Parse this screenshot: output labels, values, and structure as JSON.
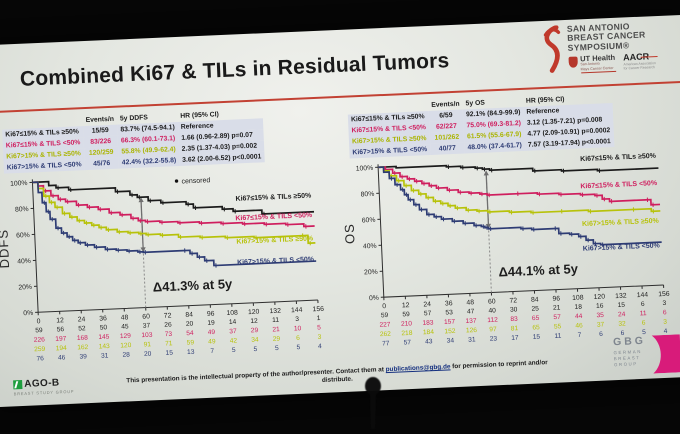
{
  "slide": {
    "title": "Combined Ki67 & TILs in Residual Tumors"
  },
  "logos": {
    "sabcs": {
      "line1": "SAN ANTONIO",
      "line2": "BREAST CANCER",
      "line3": "SYMPOSIUM®"
    },
    "ut_health": {
      "name": "UT Health",
      "sub1": "San Antonio",
      "sub2": "Mays Cancer Center"
    },
    "aacr": {
      "name": "AACR",
      "sub1": "American Association",
      "sub2": "for Cancer Research"
    },
    "ago": {
      "name": "AGO-B",
      "sub": "BREAST STUDY GROUP"
    },
    "gbg": {
      "name": "GBG",
      "sub1": "GERMAN",
      "sub2": "BREAST",
      "sub3": "GROUP"
    }
  },
  "footer": {
    "pre": "This presentation is the intellectual property of the author/presenter. Contact them at ",
    "link": "publications@gbg.de",
    "post": " for permission to reprint and/or distribute."
  },
  "colors": {
    "group1": "#1b1b1b",
    "group2": "#cf1e5e",
    "group3": "#aab400",
    "group4": "#2e3c74",
    "accent_red": "#c24133",
    "gbg_magenta": "#d81b7a",
    "ago_green": "#1e9e3e"
  },
  "tables": [
    {
      "headers": [
        "Events/n",
        "5y DDFS",
        "HR (95% CI)"
      ],
      "rows": [
        {
          "label": "Ki67≤15% & TILs ≥50%",
          "events": "15/59",
          "surv": "83.7% (74.5-94.1)",
          "hr": "Reference",
          "color": "#1b1b1b"
        },
        {
          "label": "Ki67≤15% & TILS <50%",
          "events": "83/226",
          "surv": "66.3% (60.1-73.1)",
          "hr": "1.66 (0.96-2.89) p=0.07",
          "color": "#cf1e5e"
        },
        {
          "label": "Ki67>15% & TILS ≥50%",
          "events": "120/259",
          "surv": "55.8% (49.9-62.4)",
          "hr": "2.35 (1.37-4.03) p=0.002",
          "color": "#aab400"
        },
        {
          "label": "Ki67>15% & TILS <50%",
          "events": "45/76",
          "surv": "42.4% (32.2-55.8)",
          "hr": "3.62 (2.00-6.52) p<0.0001",
          "color": "#2e3c74"
        }
      ]
    },
    {
      "headers": [
        "Events/n",
        "5y OS",
        "HR (95% CI)"
      ],
      "rows": [
        {
          "label": "Ki67≤15% & TILs ≥50%",
          "events": "6/59",
          "surv": "92.1% (84.9-99.9)",
          "hr": "Reference",
          "color": "#1b1b1b"
        },
        {
          "label": "Ki67≤15% & TILS <50%",
          "events": "62/227",
          "surv": "75.0% (69.3-81.2)",
          "hr": "3.12 (1.35-7.21) p=0.008",
          "color": "#cf1e5e"
        },
        {
          "label": "Ki67>15% & TILS ≥50%",
          "events": "101/262",
          "surv": "61.5% (55.6-67.9)",
          "hr": "4.77 (2.09-10.91) p=0.0002",
          "color": "#aab400"
        },
        {
          "label": "Ki67>15% & TILS <50%",
          "events": "40/77",
          "surv": "48.0% (37.4-61.7)",
          "hr": "7.57 (3.19-17.94) p<0.0001",
          "color": "#2e3c74"
        }
      ]
    }
  ],
  "chart_data": [
    {
      "type": "line",
      "subtype": "kaplan-meier",
      "title": "",
      "ylabel": "DDFS",
      "xlabel": "",
      "xlim": [
        0,
        156
      ],
      "ylim": [
        0,
        100
      ],
      "x_ticks": [
        0,
        12,
        24,
        36,
        48,
        60,
        72,
        84,
        96,
        108,
        120,
        132,
        144,
        156
      ],
      "y_tick_labels": [
        "0%",
        "20%",
        "40%",
        "60%",
        "80%",
        "100%"
      ],
      "legend": "censored",
      "annotation": {
        "text": "Δ41.3% at 5y",
        "x": 60,
        "y_from": 42.5,
        "y_to": 85
      },
      "series": [
        {
          "name": "Ki67≤15% & TILs ≥50%",
          "color": "#1b1b1b",
          "label_y": 79,
          "points": [
            [
              0,
              100
            ],
            [
              9,
              97
            ],
            [
              13,
              95
            ],
            [
              20,
              93
            ],
            [
              46,
              90
            ],
            [
              54,
              87
            ],
            [
              58,
              85
            ],
            [
              64,
              82
            ],
            [
              71,
              80
            ],
            [
              85,
              78
            ],
            [
              89,
              75
            ],
            [
              105,
              73
            ],
            [
              111,
              71
            ],
            [
              127,
              68
            ],
            [
              156,
              68
            ]
          ],
          "at_risk": [
            59,
            56,
            52,
            50,
            45,
            37,
            26,
            20,
            19,
            14,
            12,
            11,
            3,
            1
          ]
        },
        {
          "name": "Ki67≤15% & TILS <50%",
          "color": "#cf1e5e",
          "label_y": 64,
          "points": [
            [
              0,
              100
            ],
            [
              3,
              97
            ],
            [
              6,
              93
            ],
            [
              10,
              89
            ],
            [
              14,
              86
            ],
            [
              18,
              84
            ],
            [
              24,
              81
            ],
            [
              30,
              79
            ],
            [
              36,
              77
            ],
            [
              42,
              74
            ],
            [
              48,
              72
            ],
            [
              54,
              69
            ],
            [
              58,
              67
            ],
            [
              62,
              66
            ],
            [
              70,
              65
            ],
            [
              80,
              64
            ],
            [
              92,
              63
            ],
            [
              104,
              62
            ],
            [
              116,
              61
            ],
            [
              128,
              60
            ],
            [
              140,
              59
            ],
            [
              150,
              57
            ],
            [
              156,
              57
            ]
          ],
          "at_risk": [
            226,
            197,
            168,
            145,
            129,
            103,
            73,
            54,
            49,
            37,
            29,
            21,
            10,
            5
          ]
        },
        {
          "name": "Ki67>15% & TILS ≥50%",
          "color": "#b7c20a",
          "label_y": 46,
          "points": [
            [
              0,
              100
            ],
            [
              3,
              95
            ],
            [
              6,
              89
            ],
            [
              9,
              84
            ],
            [
              12,
              80
            ],
            [
              16,
              75
            ],
            [
              20,
              72
            ],
            [
              24,
              69
            ],
            [
              28,
              67
            ],
            [
              32,
              65
            ],
            [
              36,
              63
            ],
            [
              40,
              61
            ],
            [
              46,
              59
            ],
            [
              52,
              58
            ],
            [
              58,
              57
            ],
            [
              62,
              56
            ],
            [
              70,
              55
            ],
            [
              80,
              53
            ],
            [
              92,
              52
            ],
            [
              106,
              51
            ],
            [
              122,
              50
            ],
            [
              148,
              50
            ],
            [
              152,
              44
            ],
            [
              156,
              44
            ]
          ],
          "at_risk": [
            259,
            194,
            162,
            143,
            120,
            91,
            71,
            59,
            49,
            42,
            34,
            29,
            6,
            3
          ]
        },
        {
          "name": "Ki67>15% & TILS <50%",
          "color": "#2e3c74",
          "label_y": 30,
          "points": [
            [
              0,
              100
            ],
            [
              3,
              92
            ],
            [
              5,
              84
            ],
            [
              7,
              77
            ],
            [
              9,
              71
            ],
            [
              12,
              64
            ],
            [
              15,
              60
            ],
            [
              18,
              57
            ],
            [
              21,
              54
            ],
            [
              24,
              52
            ],
            [
              28,
              50
            ],
            [
              33,
              48
            ],
            [
              39,
              46
            ],
            [
              45,
              45
            ],
            [
              51,
              44
            ],
            [
              57,
              43
            ],
            [
              60,
              42.5
            ],
            [
              82,
              42.5
            ],
            [
              86,
              40
            ],
            [
              90,
              37
            ],
            [
              94,
              34
            ],
            [
              99,
              30
            ],
            [
              156,
              30
            ]
          ],
          "at_risk": [
            76,
            46,
            39,
            31,
            28,
            20,
            15,
            13,
            7,
            5,
            5,
            5,
            5,
            4
          ]
        }
      ]
    },
    {
      "type": "line",
      "subtype": "kaplan-meier",
      "title": "",
      "ylabel": "OS",
      "xlabel": "",
      "xlim": [
        0,
        156
      ],
      "ylim": [
        0,
        100
      ],
      "x_ticks": [
        0,
        12,
        24,
        36,
        48,
        60,
        72,
        84,
        96,
        108,
        120,
        132,
        144,
        156
      ],
      "y_tick_labels": [
        "0%",
        "20%",
        "40%",
        "60%",
        "80%",
        "100%"
      ],
      "legend": "",
      "annotation": {
        "text": "Δ44.1% at 5y",
        "x": 60,
        "y_from": 49,
        "y_to": 94
      },
      "series": [
        {
          "name": "Ki67≤15% & TILs ≥50%",
          "color": "#1b1b1b",
          "label_y": 98,
          "points": [
            [
              0,
              100
            ],
            [
              10,
              99
            ],
            [
              38,
              98
            ],
            [
              46,
              97
            ],
            [
              54,
              96
            ],
            [
              58,
              95
            ],
            [
              62,
              94
            ],
            [
              86,
              92
            ],
            [
              102,
              91
            ],
            [
              122,
              90
            ],
            [
              156,
              90
            ]
          ],
          "at_risk": [
            59,
            59,
            57,
            53,
            47,
            40,
            30,
            25,
            21,
            18,
            16,
            15,
            6,
            3
          ]
        },
        {
          "name": "Ki67≤15% & TILS <50%",
          "color": "#cf1e5e",
          "label_y": 77,
          "points": [
            [
              0,
              100
            ],
            [
              4,
              98
            ],
            [
              8,
              95
            ],
            [
              12,
              92
            ],
            [
              16,
              90
            ],
            [
              20,
              88
            ],
            [
              24,
              86
            ],
            [
              28,
              84
            ],
            [
              32,
              82
            ],
            [
              38,
              80
            ],
            [
              44,
              78
            ],
            [
              50,
              77
            ],
            [
              56,
              76
            ],
            [
              60,
              75
            ],
            [
              76,
              75
            ],
            [
              88,
              74
            ],
            [
              100,
              73
            ],
            [
              112,
              72
            ],
            [
              120,
              71
            ],
            [
              124,
              68
            ],
            [
              128,
              66
            ],
            [
              148,
              66
            ],
            [
              151,
              62
            ],
            [
              156,
              62
            ]
          ],
          "at_risk": [
            227,
            210,
            183,
            157,
            137,
            112,
            83,
            65,
            57,
            44,
            35,
            24,
            11,
            6
          ]
        },
        {
          "name": "Ki67>15% & TILS ≥50%",
          "color": "#b7c20a",
          "label_y": 48,
          "points": [
            [
              0,
              100
            ],
            [
              3,
              97
            ],
            [
              6,
              93
            ],
            [
              10,
              89
            ],
            [
              14,
              85
            ],
            [
              18,
              81
            ],
            [
              22,
              78
            ],
            [
              26,
              75
            ],
            [
              30,
              72
            ],
            [
              34,
              70
            ],
            [
              38,
              68
            ],
            [
              42,
              66
            ],
            [
              48,
              64
            ],
            [
              54,
              63
            ],
            [
              60,
              62
            ],
            [
              72,
              61
            ],
            [
              84,
              60
            ],
            [
              100,
              60
            ],
            [
              116,
              59
            ],
            [
              140,
              59
            ],
            [
              151,
              57
            ],
            [
              156,
              57
            ]
          ],
          "at_risk": [
            262,
            218,
            184,
            152,
            126,
            97,
            81,
            65,
            55,
            46,
            37,
            32,
            6,
            3
          ]
        },
        {
          "name": "Ki67>15% & TILS <50%",
          "color": "#2e3c74",
          "label_y": 29,
          "points": [
            [
              0,
              100
            ],
            [
              3,
              96
            ],
            [
              6,
              91
            ],
            [
              9,
              86
            ],
            [
              12,
              82
            ],
            [
              14,
              78
            ],
            [
              16,
              74
            ],
            [
              19,
              70
            ],
            [
              22,
              66
            ],
            [
              26,
              62
            ],
            [
              30,
              60
            ],
            [
              34,
              58
            ],
            [
              40,
              56
            ],
            [
              46,
              54
            ],
            [
              52,
              52
            ],
            [
              56,
              51
            ],
            [
              58,
              50
            ],
            [
              60,
              49
            ],
            [
              78,
              48
            ],
            [
              84,
              47
            ],
            [
              96,
              47
            ],
            [
              99,
              43
            ],
            [
              105,
              42
            ],
            [
              110,
              40
            ],
            [
              114,
              37
            ],
            [
              118,
              34
            ],
            [
              122,
              33
            ],
            [
              156,
              33
            ]
          ],
          "at_risk": [
            77,
            57,
            43,
            34,
            31,
            23,
            17,
            15,
            11,
            7,
            6,
            6,
            5,
            4
          ]
        }
      ]
    }
  ]
}
